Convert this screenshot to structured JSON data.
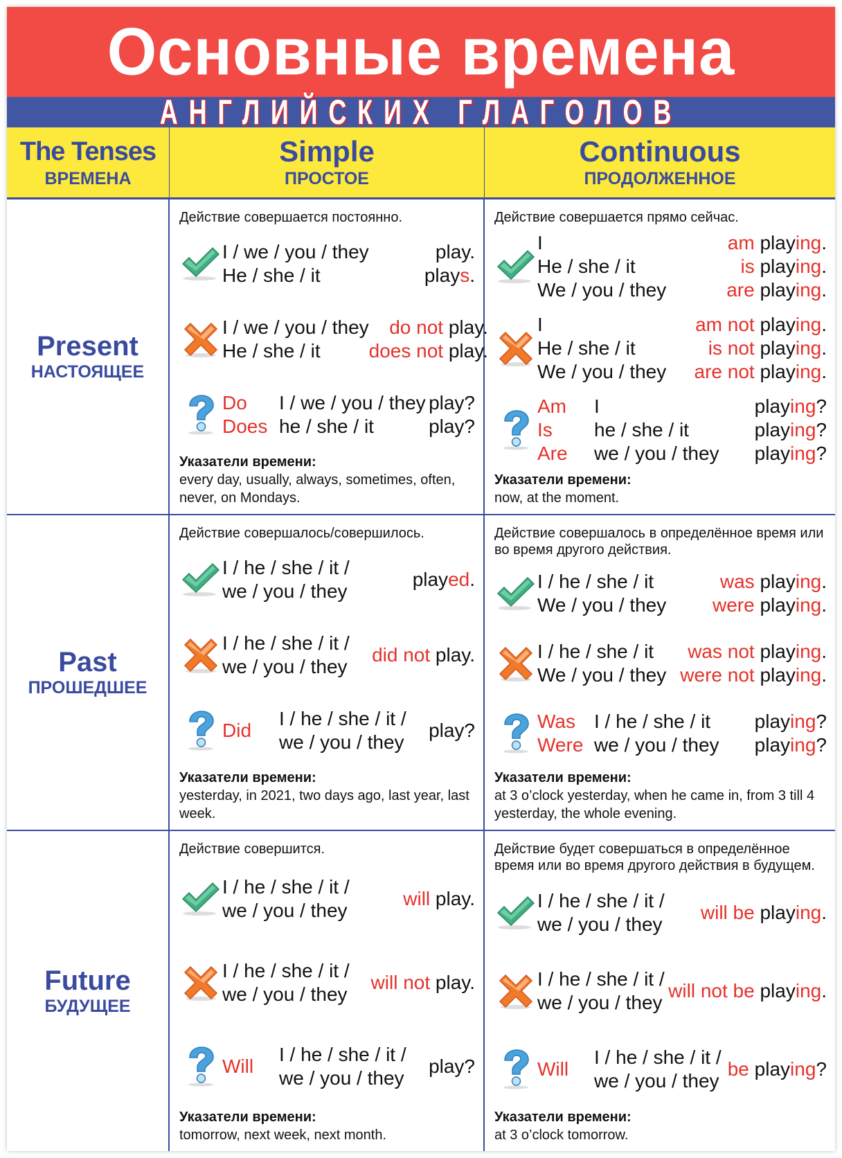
{
  "colors": {
    "title_band": "#f24a45",
    "subtitle_band": "#4257a4",
    "header_band": "#fde93c",
    "heading_text": "#3a4b9f",
    "highlight": "#e5312a",
    "affirmative_icon": "#3fae82",
    "negative_icon": "#f07a2a",
    "question_icon": "#4aa3dd"
  },
  "title": "Основные времена",
  "subtitle": "АНГЛИЙСКИХ ГЛАГОЛОВ",
  "header": [
    {
      "en": "The Tenses",
      "ru": "ВРЕМЕНА"
    },
    {
      "en": "Simple",
      "ru": "ПРОСТОЕ"
    },
    {
      "en": "Continuous",
      "ru": "ПРОДОЛЖЕННОЕ"
    }
  ],
  "rows": [
    {
      "en": "Present",
      "ru": "НАСТОЯЩЕЕ",
      "cells": [
        {
          "desc": "Действие совершается постоянно.",
          "forms": [
            {
              "icon": "check-icon",
              "q": [],
              "subj": [
                "I / we / you / they",
                "He / she / it"
              ],
              "pred": [
                [
                  [
                    "play.",
                    0
                  ]
                ],
                [
                  [
                    "play",
                    0
                  ],
                  [
                    "s",
                    1
                  ],
                  [
                    ".",
                    0
                  ]
                ]
              ]
            },
            {
              "icon": "cross-icon",
              "q": [],
              "subj": [
                "I / we / you / they",
                "He / she / it"
              ],
              "pred": [
                [
                  [
                    "do not ",
                    1
                  ],
                  [
                    "play.",
                    0
                  ]
                ],
                [
                  [
                    "does not ",
                    1
                  ],
                  [
                    "play.",
                    0
                  ]
                ]
              ]
            },
            {
              "icon": "question-icon",
              "q": [
                "Do",
                "Does"
              ],
              "subj": [
                "I / we / you / they",
                "he / she / it"
              ],
              "pred": [
                [
                  [
                    "play?",
                    0
                  ]
                ],
                [
                  [
                    "play?",
                    0
                  ]
                ]
              ]
            }
          ],
          "markers_label": "Указатели времени:",
          "markers": "every day, usually, always, sometimes, often, never, on Mondays."
        },
        {
          "desc": "Действие совершается прямо сейчас.",
          "forms": [
            {
              "icon": "check-icon",
              "q": [],
              "subj": [
                "I",
                "He / she / it",
                "We / you / they"
              ],
              "pred": [
                [
                  [
                    "am ",
                    1
                  ],
                  [
                    "play",
                    0
                  ],
                  [
                    "ing",
                    1
                  ],
                  [
                    ".",
                    0
                  ]
                ],
                [
                  [
                    "is ",
                    1
                  ],
                  [
                    "play",
                    0
                  ],
                  [
                    "ing",
                    1
                  ],
                  [
                    ".",
                    0
                  ]
                ],
                [
                  [
                    "are ",
                    1
                  ],
                  [
                    "play",
                    0
                  ],
                  [
                    "ing",
                    1
                  ],
                  [
                    ".",
                    0
                  ]
                ]
              ]
            },
            {
              "icon": "cross-icon",
              "q": [],
              "subj": [
                "I",
                "He / she / it",
                "We / you / they"
              ],
              "pred": [
                [
                  [
                    "am not ",
                    1
                  ],
                  [
                    "play",
                    0
                  ],
                  [
                    "ing",
                    1
                  ],
                  [
                    ".",
                    0
                  ]
                ],
                [
                  [
                    "is not ",
                    1
                  ],
                  [
                    "play",
                    0
                  ],
                  [
                    "ing",
                    1
                  ],
                  [
                    ".",
                    0
                  ]
                ],
                [
                  [
                    "are not ",
                    1
                  ],
                  [
                    "play",
                    0
                  ],
                  [
                    "ing",
                    1
                  ],
                  [
                    ".",
                    0
                  ]
                ]
              ]
            },
            {
              "icon": "question-icon",
              "q": [
                "Am",
                "Is",
                "Are"
              ],
              "subj": [
                "I",
                "he / she / it",
                "we / you / they"
              ],
              "pred": [
                [
                  [
                    "play",
                    0
                  ],
                  [
                    "ing",
                    1
                  ],
                  [
                    "?",
                    0
                  ]
                ],
                [
                  [
                    "play",
                    0
                  ],
                  [
                    "ing",
                    1
                  ],
                  [
                    "?",
                    0
                  ]
                ],
                [
                  [
                    "play",
                    0
                  ],
                  [
                    "ing",
                    1
                  ],
                  [
                    "?",
                    0
                  ]
                ]
              ]
            }
          ],
          "markers_label": "Указатели времени:",
          "markers": "now, at the moment."
        }
      ]
    },
    {
      "en": "Past",
      "ru": "ПРОШЕДШЕЕ",
      "cells": [
        {
          "desc": "Действие совершалось/совершилось.",
          "forms": [
            {
              "icon": "check-icon",
              "q": [],
              "subj": [
                "I / he / she / it /",
                "we / you / they"
              ],
              "pred": [
                [
                  [
                    "play",
                    0
                  ],
                  [
                    "ed",
                    1
                  ],
                  [
                    ".",
                    0
                  ]
                ]
              ]
            },
            {
              "icon": "cross-icon",
              "q": [],
              "subj": [
                "I / he / she / it /",
                "we / you / they"
              ],
              "pred": [
                [
                  [
                    "did not ",
                    1
                  ],
                  [
                    "play.",
                    0
                  ]
                ]
              ]
            },
            {
              "icon": "question-icon",
              "q": [
                "Did"
              ],
              "subj": [
                "I / he / she / it /",
                "we / you / they"
              ],
              "pred": [
                [
                  [
                    "play?",
                    0
                  ]
                ]
              ]
            }
          ],
          "markers_label": "Указатели времени:",
          "markers": "yesterday, in 2021, two days ago, last year, last week."
        },
        {
          "desc": "Действие совершалось в определённое время или во время другого действия.",
          "forms": [
            {
              "icon": "check-icon",
              "q": [],
              "subj": [
                "I / he / she / it",
                "We / you / they"
              ],
              "pred": [
                [
                  [
                    "was ",
                    1
                  ],
                  [
                    "play",
                    0
                  ],
                  [
                    "ing",
                    1
                  ],
                  [
                    ".",
                    0
                  ]
                ],
                [
                  [
                    "were ",
                    1
                  ],
                  [
                    "play",
                    0
                  ],
                  [
                    "ing",
                    1
                  ],
                  [
                    ".",
                    0
                  ]
                ]
              ]
            },
            {
              "icon": "cross-icon",
              "q": [],
              "subj": [
                "I / he / she / it",
                "We / you / they"
              ],
              "pred": [
                [
                  [
                    "was not ",
                    1
                  ],
                  [
                    "play",
                    0
                  ],
                  [
                    "ing",
                    1
                  ],
                  [
                    ".",
                    0
                  ]
                ],
                [
                  [
                    "were not ",
                    1
                  ],
                  [
                    "play",
                    0
                  ],
                  [
                    "ing",
                    1
                  ],
                  [
                    ".",
                    0
                  ]
                ]
              ]
            },
            {
              "icon": "question-icon",
              "q": [
                "Was",
                "Were"
              ],
              "subj": [
                "I / he / she / it",
                "we / you / they"
              ],
              "pred": [
                [
                  [
                    "play",
                    0
                  ],
                  [
                    "ing",
                    1
                  ],
                  [
                    "?",
                    0
                  ]
                ],
                [
                  [
                    "play",
                    0
                  ],
                  [
                    "ing",
                    1
                  ],
                  [
                    "?",
                    0
                  ]
                ]
              ]
            }
          ],
          "markers_label": "Указатели времени:",
          "markers": "at 3 o’clock yesterday, when he came in, from 3 till 4 yesterday, the whole evening."
        }
      ]
    },
    {
      "en": "Future",
      "ru": "БУДУЩЕЕ",
      "cells": [
        {
          "desc": "Действие совершится.",
          "forms": [
            {
              "icon": "check-icon",
              "q": [],
              "subj": [
                "I / he / she / it /",
                "we / you / they"
              ],
              "pred": [
                [
                  [
                    "will ",
                    1
                  ],
                  [
                    "play.",
                    0
                  ]
                ]
              ]
            },
            {
              "icon": "cross-icon",
              "q": [],
              "subj": [
                "I / he / she / it /",
                "we / you / they"
              ],
              "pred": [
                [
                  [
                    "will not ",
                    1
                  ],
                  [
                    "play.",
                    0
                  ]
                ]
              ]
            },
            {
              "icon": "question-icon",
              "q": [
                "Will"
              ],
              "subj": [
                "I / he / she / it /",
                "we / you / they"
              ],
              "pred": [
                [
                  [
                    "play?",
                    0
                  ]
                ]
              ]
            }
          ],
          "markers_label": "Указатели времени:",
          "markers": "tomorrow, next week, next month."
        },
        {
          "desc": "Действие будет совершаться в определённое время или во время другого действия в будущем.",
          "forms": [
            {
              "icon": "check-icon",
              "q": [],
              "subj": [
                "I / he / she / it /",
                "we / you / they"
              ],
              "pred": [
                [
                  [
                    "will be ",
                    1
                  ],
                  [
                    "play",
                    0
                  ],
                  [
                    "ing",
                    1
                  ],
                  [
                    ".",
                    0
                  ]
                ]
              ]
            },
            {
              "icon": "cross-icon",
              "q": [],
              "subj": [
                "I / he / she / it /",
                "we / you / they"
              ],
              "pred": [
                [
                  [
                    "will not be ",
                    1
                  ],
                  [
                    "play",
                    0
                  ],
                  [
                    "ing",
                    1
                  ],
                  [
                    ".",
                    0
                  ]
                ]
              ]
            },
            {
              "icon": "question-icon",
              "q": [
                "Will"
              ],
              "subj": [
                "I / he / she / it /",
                "we / you / they"
              ],
              "pred": [
                [
                  [
                    "be ",
                    1
                  ],
                  [
                    "play",
                    0
                  ],
                  [
                    "ing",
                    1
                  ],
                  [
                    "?",
                    0
                  ]
                ]
              ]
            }
          ],
          "markers_label": "Указатели времени:",
          "markers": "at 3 o’clock tomorrow."
        }
      ]
    }
  ]
}
